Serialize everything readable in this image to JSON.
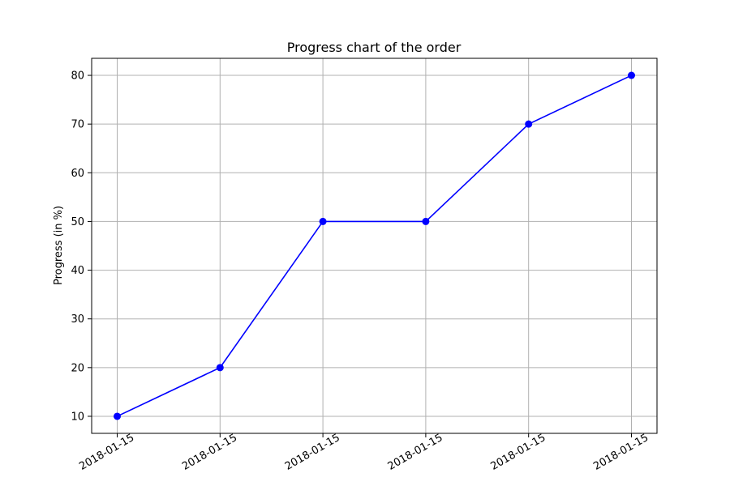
{
  "chart_data": {
    "type": "line",
    "title": "Progress chart of the order",
    "xlabel": "",
    "ylabel": "Progress (in %)",
    "categories": [
      "2018-01-15",
      "2018-01-15",
      "2018-01-15",
      "2018-01-15",
      "2018-01-15",
      "2018-01-15"
    ],
    "series": [
      {
        "values": [
          10,
          20,
          50,
          50,
          70,
          80
        ],
        "color": "#0000ff",
        "marker": "circle"
      }
    ],
    "yticks": [
      10,
      20,
      30,
      40,
      50,
      60,
      70,
      80
    ],
    "ylim": [
      6.5,
      83.5
    ],
    "grid": true,
    "x_tick_rotation_deg": 30
  }
}
